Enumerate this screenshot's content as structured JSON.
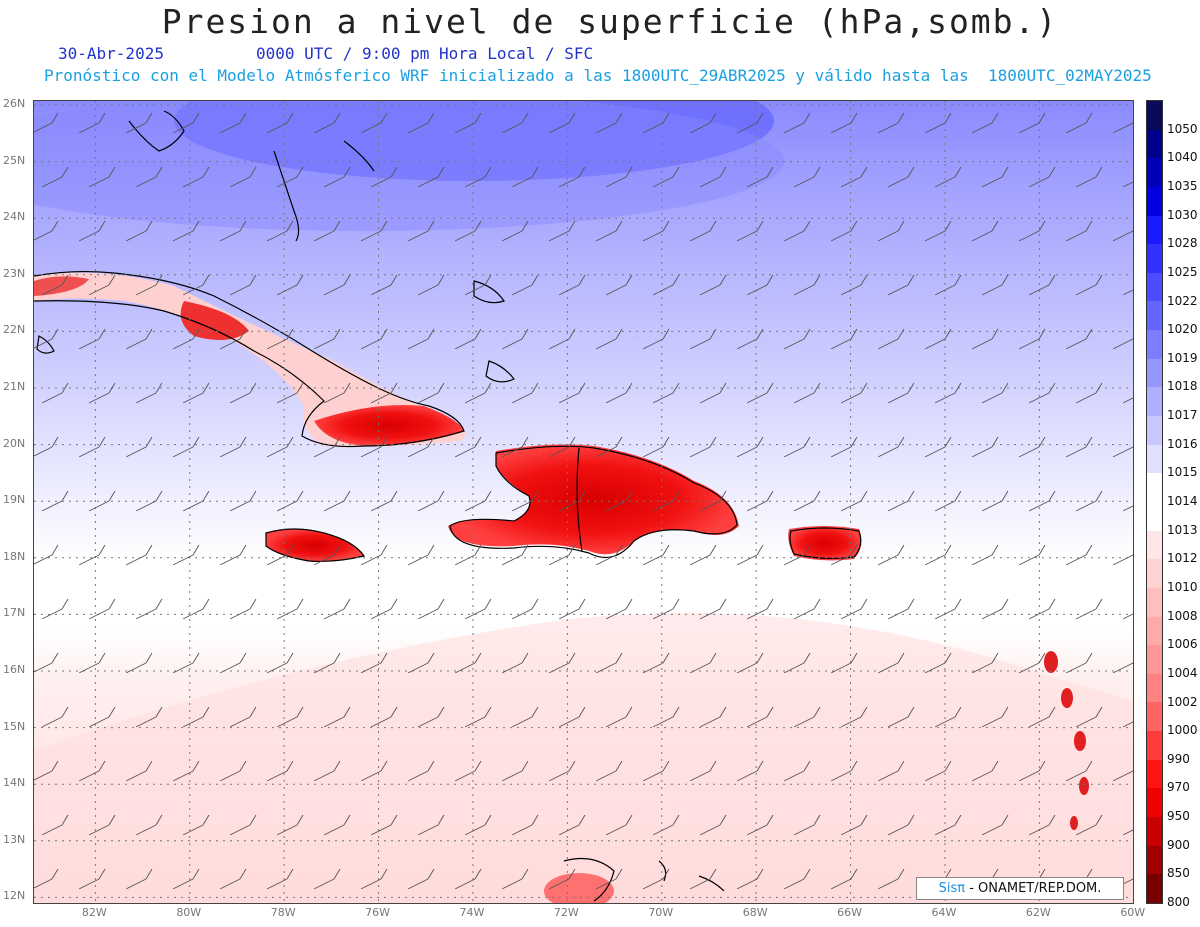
{
  "title": "Presion a nivel de superficie (hPa,somb.)",
  "date_text": "30-Abr-2025",
  "time_text": "0000 UTC / 9:00 pm Hora Local / SFC",
  "forecast_text": "Pronóstico con el Modelo Atmósferico WRF inicializado a las 1800UTC_29ABR2025 y válido hasta las  1800UTC_02MAY2025",
  "map": {
    "lat_labels": [
      "26N",
      "25N",
      "24N",
      "23N",
      "22N",
      "21N",
      "20N",
      "19N",
      "18N",
      "17N",
      "16N",
      "15N",
      "14N",
      "13N",
      "12N"
    ],
    "lon_labels": [
      "82W",
      "80W",
      "78W",
      "76W",
      "74W",
      "72W",
      "70W",
      "68W",
      "66W",
      "64W",
      "62W",
      "60W"
    ],
    "lat_range": [
      12,
      26
    ],
    "lon_range": [
      -83.3,
      -60
    ],
    "grid": true,
    "gridline_style": "dotted"
  },
  "colorbar": {
    "labels": [
      "1050",
      "1040",
      "1035",
      "1030",
      "1028",
      "1025",
      "1022",
      "1020",
      "1019",
      "1018",
      "1017",
      "1016",
      "1015",
      "1014",
      "1013",
      "1012",
      "1010",
      "1008",
      "1006",
      "1004",
      "1002",
      "1000",
      "990",
      "970",
      "950",
      "900",
      "850",
      "800"
    ],
    "colors": [
      "#0a0a5a",
      "#00008c",
      "#0000b8",
      "#0000e0",
      "#1a1aff",
      "#3232ff",
      "#4b4bff",
      "#6464ff",
      "#7d7dff",
      "#9696ff",
      "#afafff",
      "#c8c8ff",
      "#e1e1ff",
      "#ffffff",
      "#ffffff",
      "#ffe6e6",
      "#ffd2d2",
      "#ffbebe",
      "#ffaaaa",
      "#ff9696",
      "#ff8282",
      "#ff6464",
      "#ff3c3c",
      "#ff1414",
      "#f00000",
      "#c80000",
      "#a00000",
      "#780000"
    ]
  },
  "credit": {
    "brand": "Sisπ",
    "text": " - ONAMET/REP.DOM."
  }
}
